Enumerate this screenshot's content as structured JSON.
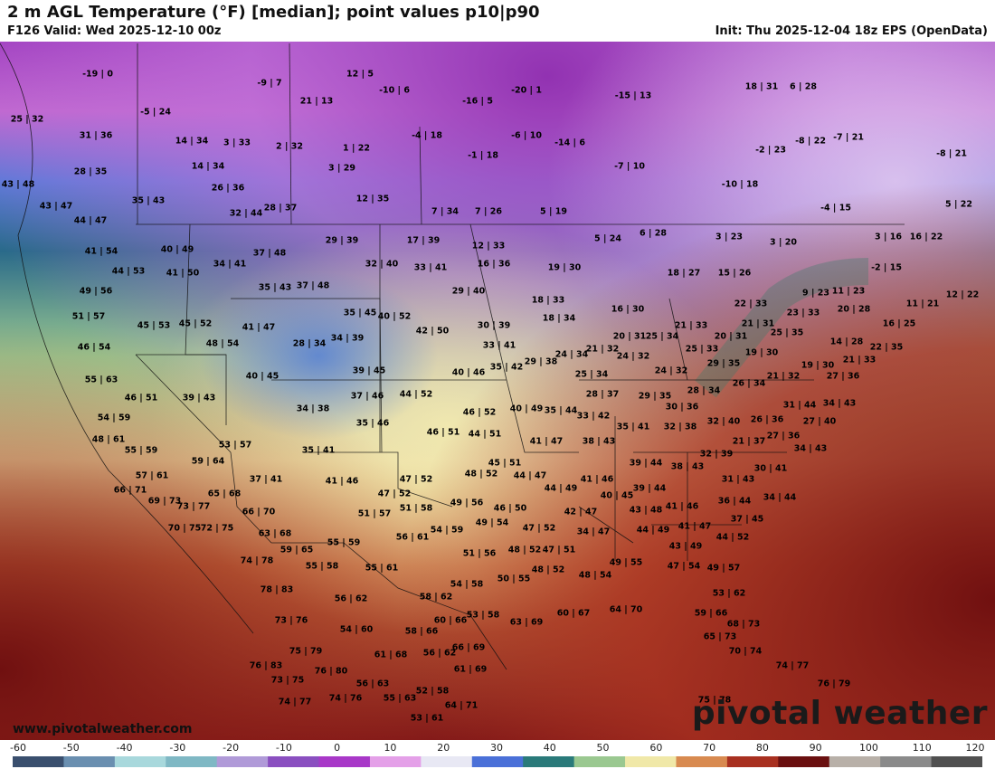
{
  "header": {
    "title": "2 m AGL Temperature (°F) [median]; point values p10|p90",
    "valid": "F126 Valid: Wed 2025-12-10 00z",
    "init": "Init: Thu 2025-12-04 18z EPS (OpenData)"
  },
  "footer": {
    "website": "www.pivotalweather.com",
    "brand": "pivotal weather"
  },
  "colorbar": {
    "ticks": [
      "-60",
      "-50",
      "-40",
      "-30",
      "-20",
      "-10",
      "0",
      "10",
      "20",
      "30",
      "40",
      "50",
      "60",
      "70",
      "80",
      "90",
      "100",
      "110",
      "120"
    ],
    "colors": [
      "#3a4f6e",
      "#6a8fb0",
      "#a8d8dc",
      "#7fb8c4",
      "#b09ad8",
      "#8a4fc0",
      "#a838c8",
      "#e4a0e8",
      "#e8e8f4",
      "#4a70d8",
      "#2a7a7a",
      "#9ac890",
      "#f0e8a8",
      "#d88a50",
      "#a83020",
      "#6a1010",
      "#b8b0a8",
      "#8a8a8a",
      "#505050"
    ]
  },
  "points": [
    [
      "-19 | 0",
      108,
      82
    ],
    [
      "12 | 5",
      398,
      82
    ],
    [
      "-9 | 7",
      298,
      92
    ],
    [
      "-10 | 6",
      436,
      100
    ],
    [
      "-20 | 1",
      582,
      100
    ],
    [
      "-15 | 13",
      700,
      106
    ],
    [
      "18 | 31",
      842,
      96
    ],
    [
      "6 | 28",
      888,
      96
    ],
    [
      "25 | 32",
      30,
      132
    ],
    [
      "-5 | 24",
      172,
      124
    ],
    [
      "21 | 13",
      350,
      112
    ],
    [
      "-16 | 5",
      528,
      112
    ],
    [
      "31 | 36",
      106,
      150
    ],
    [
      "14 | 34",
      212,
      156
    ],
    [
      "3 | 33",
      262,
      158
    ],
    [
      "2 | 32",
      320,
      162
    ],
    [
      "1 | 22",
      394,
      164
    ],
    [
      "-4 | 18",
      472,
      150
    ],
    [
      "-6 | 10",
      582,
      150
    ],
    [
      "-14 | 6",
      630,
      158
    ],
    [
      "-2 | 23",
      852,
      166
    ],
    [
      "-8 | 22",
      896,
      156
    ],
    [
      "-7 | 21",
      938,
      152
    ],
    [
      "-8 | 21",
      1052,
      170
    ],
    [
      "-1 | 18",
      534,
      172
    ],
    [
      "14 | 34",
      230,
      184
    ],
    [
      "3 | 29",
      378,
      186
    ],
    [
      "-7 | 10",
      696,
      184
    ],
    [
      "28 | 35",
      100,
      190
    ],
    [
      "43 | 48",
      20,
      204
    ],
    [
      "26 | 36",
      252,
      208
    ],
    [
      "-10 | 18",
      818,
      204
    ],
    [
      "35 | 43",
      164,
      222
    ],
    [
      "12 | 35",
      412,
      220
    ],
    [
      "43 | 47",
      62,
      228
    ],
    [
      "-4 | 15",
      924,
      230
    ],
    [
      "5 | 22",
      1060,
      226
    ],
    [
      "7 | 34",
      492,
      234
    ],
    [
      "7 | 26",
      540,
      234
    ],
    [
      "5 | 19",
      612,
      234
    ],
    [
      "32 | 44",
      272,
      236
    ],
    [
      "28 | 37",
      310,
      230
    ],
    [
      "44 | 47",
      100,
      244
    ],
    [
      "29 | 39",
      378,
      266
    ],
    [
      "17 | 39",
      468,
      266
    ],
    [
      "12 | 33",
      540,
      272
    ],
    [
      "5 | 24",
      672,
      264
    ],
    [
      "6 | 28",
      722,
      258
    ],
    [
      "3 | 23",
      806,
      262
    ],
    [
      "3 | 20",
      866,
      268
    ],
    [
      "3 | 16",
      982,
      262
    ],
    [
      "16 | 22",
      1024,
      262
    ],
    [
      "41 | 54",
      112,
      278
    ],
    [
      "40 | 49",
      196,
      276
    ],
    [
      "37 | 48",
      298,
      280
    ],
    [
      "32 | 40",
      422,
      292
    ],
    [
      "33 | 41",
      476,
      296
    ],
    [
      "16 | 36",
      546,
      292
    ],
    [
      "19 | 30",
      624,
      296
    ],
    [
      "-2 | 15",
      980,
      296
    ],
    [
      "44 | 53",
      142,
      300
    ],
    [
      "41 | 50",
      202,
      302
    ],
    [
      "34 | 41",
      254,
      292
    ],
    [
      "18 | 27",
      756,
      302
    ],
    [
      "15 | 26",
      812,
      302
    ],
    [
      "49 | 56",
      106,
      322
    ],
    [
      "35 | 43",
      304,
      318
    ],
    [
      "37 | 48",
      346,
      316
    ],
    [
      "29 | 40",
      518,
      322
    ],
    [
      "18 | 33",
      606,
      332
    ],
    [
      "9 | 23",
      902,
      324
    ],
    [
      "11 | 23",
      938,
      322
    ],
    [
      "12 | 22",
      1064,
      326
    ],
    [
      "22 | 33",
      830,
      336
    ],
    [
      "11 | 21",
      1020,
      336
    ],
    [
      "51 | 57",
      98,
      350
    ],
    [
      "45 | 53",
      170,
      360
    ],
    [
      "45 | 52",
      216,
      358
    ],
    [
      "35 | 45",
      398,
      346
    ],
    [
      "40 | 52",
      436,
      350
    ],
    [
      "16 | 30",
      694,
      342
    ],
    [
      "18 | 34",
      618,
      352
    ],
    [
      "21 | 33",
      764,
      360
    ],
    [
      "21 | 31",
      838,
      358
    ],
    [
      "23 | 33",
      888,
      346
    ],
    [
      "20 | 28",
      944,
      342
    ],
    [
      "16 | 25",
      994,
      358
    ],
    [
      "41 | 47",
      286,
      362
    ],
    [
      "42 | 50",
      478,
      366
    ],
    [
      "30 | 39",
      546,
      360
    ],
    [
      "20 | 31",
      696,
      372
    ],
    [
      "25 | 34",
      732,
      372
    ],
    [
      "20 | 31",
      808,
      372
    ],
    [
      "25 | 35",
      870,
      368
    ],
    [
      "46 | 54",
      104,
      384
    ],
    [
      "48 | 54",
      246,
      380
    ],
    [
      "28 | 34",
      342,
      380
    ],
    [
      "34 | 39",
      384,
      374
    ],
    [
      "33 | 41",
      552,
      382
    ],
    [
      "24 | 34",
      632,
      392
    ],
    [
      "21 | 32",
      666,
      386
    ],
    [
      "24 | 32",
      700,
      394
    ],
    [
      "25 | 33",
      776,
      386
    ],
    [
      "19 | 30",
      842,
      390
    ],
    [
      "14 | 28",
      936,
      378
    ],
    [
      "22 | 35",
      980,
      384
    ],
    [
      "55 | 63",
      112,
      420
    ],
    [
      "40 | 45",
      290,
      416
    ],
    [
      "39 | 45",
      408,
      410
    ],
    [
      "40 | 46",
      518,
      412
    ],
    [
      "35 | 42",
      560,
      406
    ],
    [
      "29 | 38",
      598,
      400
    ],
    [
      "25 | 34",
      654,
      414
    ],
    [
      "24 | 32",
      742,
      410
    ],
    [
      "29 | 35",
      800,
      402
    ],
    [
      "21 | 32",
      866,
      416
    ],
    [
      "19 | 30",
      904,
      404
    ],
    [
      "21 | 33",
      950,
      398
    ],
    [
      "27 | 36",
      932,
      416
    ],
    [
      "46 | 51",
      156,
      440
    ],
    [
      "39 | 43",
      220,
      440
    ],
    [
      "37 | 46",
      406,
      438
    ],
    [
      "44 | 52",
      460,
      436
    ],
    [
      "28 | 37",
      666,
      436
    ],
    [
      "29 | 35",
      724,
      438
    ],
    [
      "28 | 34",
      778,
      432
    ],
    [
      "26 | 34",
      828,
      424
    ],
    [
      "34 | 43",
      928,
      446
    ],
    [
      "31 | 44",
      884,
      448
    ],
    [
      "34 | 38",
      346,
      452
    ],
    [
      "54 | 59",
      126,
      462
    ],
    [
      "46 | 52",
      530,
      456
    ],
    [
      "40 | 49",
      582,
      452
    ],
    [
      "35 | 44",
      620,
      454
    ],
    [
      "33 | 42",
      656,
      460
    ],
    [
      "30 | 36",
      754,
      450
    ],
    [
      "27 | 40",
      906,
      466
    ],
    [
      "35 | 46",
      412,
      468
    ],
    [
      "46 | 51",
      490,
      478
    ],
    [
      "44 | 51",
      536,
      480
    ],
    [
      "35 | 41",
      700,
      472
    ],
    [
      "32 | 38",
      752,
      472
    ],
    [
      "32 | 40",
      800,
      466
    ],
    [
      "26 | 36",
      848,
      464
    ],
    [
      "48 | 61",
      120,
      486
    ],
    [
      "53 | 57",
      260,
      492
    ],
    [
      "41 | 47",
      604,
      488
    ],
    [
      "38 | 43",
      662,
      488
    ],
    [
      "21 | 37",
      828,
      488
    ],
    [
      "27 | 36",
      866,
      482
    ],
    [
      "55 | 59",
      156,
      498
    ],
    [
      "35 | 41",
      352,
      498
    ],
    [
      "34 | 43",
      896,
      496
    ],
    [
      "32 | 39",
      792,
      502
    ],
    [
      "59 | 64",
      230,
      510
    ],
    [
      "45 | 51",
      558,
      512
    ],
    [
      "39 | 44",
      714,
      512
    ],
    [
      "38 | 43",
      760,
      516
    ],
    [
      "30 | 41",
      852,
      518
    ],
    [
      "57 | 61",
      168,
      526
    ],
    [
      "37 | 41",
      294,
      530
    ],
    [
      "41 | 46",
      378,
      532
    ],
    [
      "47 | 52",
      460,
      530
    ],
    [
      "48 | 52",
      532,
      524
    ],
    [
      "44 | 47",
      586,
      526
    ],
    [
      "41 | 46",
      660,
      530
    ],
    [
      "31 | 43",
      816,
      530
    ],
    [
      "66 | 71",
      144,
      542
    ],
    [
      "65 | 68",
      248,
      546
    ],
    [
      "47 | 52",
      436,
      546
    ],
    [
      "44 | 49",
      620,
      540
    ],
    [
      "40 | 45",
      682,
      548
    ],
    [
      "39 | 44",
      718,
      540
    ],
    [
      "34 | 44",
      862,
      550
    ],
    [
      "69 | 73",
      182,
      554
    ],
    [
      "73 | 77",
      214,
      560
    ],
    [
      "49 | 56",
      516,
      556
    ],
    [
      "46 | 50",
      564,
      562
    ],
    [
      "43 | 48",
      714,
      564
    ],
    [
      "41 | 46",
      754,
      560
    ],
    [
      "36 | 44",
      812,
      554
    ],
    [
      "66 | 70",
      286,
      566
    ],
    [
      "51 | 57",
      414,
      568
    ],
    [
      "51 | 58",
      460,
      562
    ],
    [
      "42 | 47",
      642,
      566
    ],
    [
      "37 | 45",
      826,
      574
    ],
    [
      "70 | 75",
      204,
      584
    ],
    [
      "72 | 75",
      240,
      584
    ],
    [
      "63 | 68",
      304,
      590
    ],
    [
      "49 | 54",
      544,
      578
    ],
    [
      "54 | 59",
      494,
      586
    ],
    [
      "47 | 52",
      596,
      584
    ],
    [
      "34 | 47",
      656,
      588
    ],
    [
      "44 | 49",
      722,
      586
    ],
    [
      "41 | 47",
      768,
      582
    ],
    [
      "44 | 52",
      810,
      594
    ],
    [
      "55 | 59",
      380,
      600
    ],
    [
      "56 | 61",
      456,
      594
    ],
    [
      "59 | 65",
      328,
      608
    ],
    [
      "48 | 52",
      580,
      608
    ],
    [
      "47 | 51",
      618,
      608
    ],
    [
      "43 | 49",
      758,
      604
    ],
    [
      "74 | 78",
      284,
      620
    ],
    [
      "51 | 56",
      530,
      612
    ],
    [
      "55 | 58",
      356,
      626
    ],
    [
      "55 | 61",
      422,
      628
    ],
    [
      "49 | 55",
      692,
      622
    ],
    [
      "47 | 54",
      756,
      626
    ],
    [
      "49 | 57",
      800,
      628
    ],
    [
      "48 | 52",
      606,
      630
    ],
    [
      "48 | 54",
      658,
      636
    ],
    [
      "50 | 55",
      568,
      640
    ],
    [
      "54 | 58",
      516,
      646
    ],
    [
      "78 | 83",
      306,
      652
    ],
    [
      "56 | 62",
      388,
      662
    ],
    [
      "58 | 62",
      482,
      660
    ],
    [
      "53 | 62",
      806,
      656
    ],
    [
      "53 | 58",
      534,
      680
    ],
    [
      "60 | 66",
      498,
      686
    ],
    [
      "64 | 70",
      692,
      674
    ],
    [
      "60 | 67",
      634,
      678
    ],
    [
      "63 | 69",
      582,
      688
    ],
    [
      "59 | 66",
      786,
      678
    ],
    [
      "73 | 76",
      322,
      686
    ],
    [
      "68 | 73",
      822,
      690
    ],
    [
      "54 | 60",
      394,
      696
    ],
    [
      "58 | 66",
      466,
      698
    ],
    [
      "65 | 73",
      796,
      704
    ],
    [
      "75 | 79",
      338,
      720
    ],
    [
      "61 | 68",
      432,
      724
    ],
    [
      "56 | 62",
      486,
      722
    ],
    [
      "66 | 69",
      518,
      716
    ],
    [
      "70 | 74",
      824,
      720
    ],
    [
      "76 | 83",
      294,
      736
    ],
    [
      "76 | 80",
      366,
      742
    ],
    [
      "61 | 69",
      520,
      740
    ],
    [
      "74 | 77",
      876,
      736
    ],
    [
      "73 | 75",
      318,
      752
    ],
    [
      "56 | 63",
      412,
      756
    ],
    [
      "76 | 79",
      922,
      756
    ],
    [
      "74 | 77",
      326,
      776
    ],
    [
      "74 | 76",
      382,
      772
    ],
    [
      "55 | 63",
      442,
      772
    ],
    [
      "52 | 58",
      478,
      764
    ],
    [
      "64 | 71",
      510,
      780
    ],
    [
      "75 | 78",
      790,
      774
    ],
    [
      "53 | 61",
      472,
      794
    ]
  ]
}
